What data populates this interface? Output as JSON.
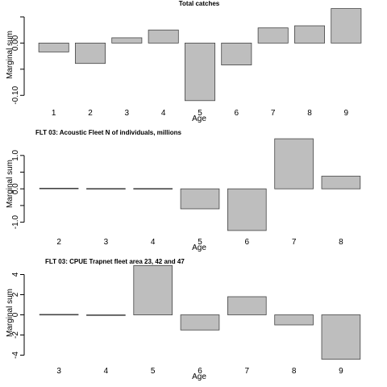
{
  "chart_data": [
    {
      "type": "bar",
      "title": "Total catches",
      "xlabel": "Age",
      "ylabel": "Marginal sum",
      "categories": [
        "1",
        "2",
        "3",
        "4",
        "5",
        "6",
        "7",
        "8",
        "9"
      ],
      "values": [
        -0.017,
        -0.039,
        0.01,
        0.025,
        -0.11,
        -0.042,
        0.029,
        0.033,
        0.066
      ],
      "ylim": [
        -0.115,
        0.07
      ],
      "yticks": [
        -0.1,
        -0.05,
        0.0,
        0.05
      ],
      "ytick_labels": [
        "-0.10",
        "",
        "0.00",
        ""
      ],
      "bar_color": "#bebebe",
      "grid": false
    },
    {
      "type": "bar",
      "title": "FLT 03: Acoustic Fleet   N of individuals, millions",
      "xlabel": "Age",
      "ylabel": "Marginal sum",
      "categories": [
        "2",
        "3",
        "4",
        "5",
        "6",
        "7",
        "8"
      ],
      "values": [
        0.02,
        0.01,
        0.01,
        -0.6,
        -1.25,
        1.5,
        0.38
      ],
      "ylim": [
        -1.3,
        1.6
      ],
      "yticks": [
        -1.0,
        -0.5,
        0.0,
        0.5,
        1.0
      ],
      "ytick_labels": [
        "-1.0",
        "",
        "0.0",
        "",
        "1.0"
      ],
      "bar_color": "#bebebe",
      "grid": false
    },
    {
      "type": "bar",
      "title": "FLT 03: CPUE Trapnet fleet area 23, 42 and 47",
      "xlabel": "Age",
      "ylabel": "Marginal sum",
      "categories": [
        "3",
        "4",
        "5",
        "6",
        "7",
        "8",
        "9"
      ],
      "values": [
        0.05,
        -0.05,
        4.9,
        -1.5,
        1.8,
        -1.0,
        -4.4
      ],
      "ylim": [
        -4.6,
        5.0
      ],
      "yticks": [
        -4,
        -2,
        0,
        2,
        4
      ],
      "ytick_labels": [
        "-4",
        "-2",
        "0",
        "2",
        "4"
      ],
      "bar_color": "#bebebe",
      "grid": false
    }
  ]
}
